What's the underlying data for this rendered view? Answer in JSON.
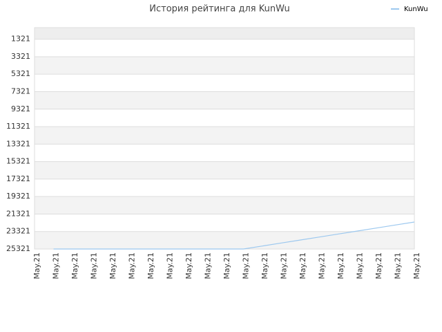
{
  "chart_data": {
    "type": "line",
    "title": "История рейтинга для KunWu",
    "categories": [
      "May.21",
      "May.21",
      "May.21",
      "May.21",
      "May.21",
      "May.21",
      "May.21",
      "May.21",
      "May.21",
      "May.21",
      "May.21",
      "May.21",
      "May.21",
      "May.21",
      "May.21",
      "May.21",
      "May.21",
      "May.21",
      "May.21",
      "May.21",
      "May.21"
    ],
    "series": [
      {
        "name": "KunWu",
        "color": "#9cc8ef",
        "values": [
          null,
          25321,
          25321,
          25321,
          25321,
          25321,
          25321,
          25321,
          25321,
          25321,
          25321,
          25321,
          24978,
          24635,
          24292,
          23949,
          23606,
          23263,
          22920,
          22577,
          22234
        ]
      }
    ],
    "ylim": [
      25321,
      0
    ],
    "yticks": [
      1321,
      3321,
      5321,
      7321,
      9321,
      11321,
      13321,
      15321,
      17321,
      19321,
      21321,
      23321,
      25321
    ],
    "grid": true,
    "legend": "top-right"
  }
}
